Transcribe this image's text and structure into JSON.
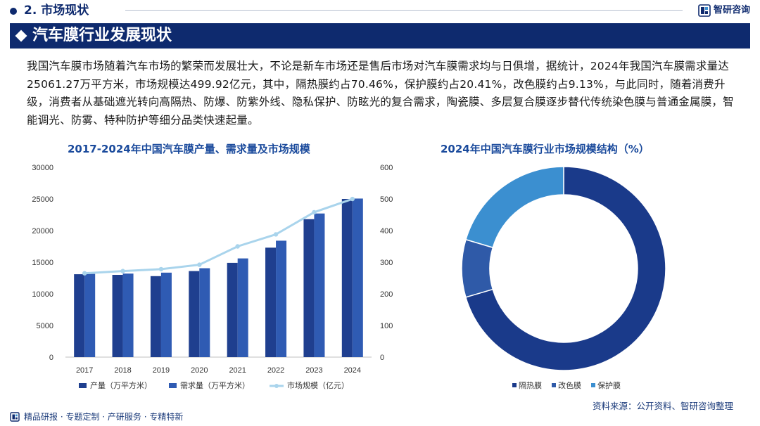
{
  "header": {
    "section": "2. 市场现状",
    "brand": "智研咨询"
  },
  "banner": {
    "title": "汽车膜行业发展现状"
  },
  "intro": "我国汽车膜市场随着汽车市场的繁荣而发展壮大，不论是新车市场还是售后市场对汽车膜需求均与日俱增，据统计，2024年我国汽车膜需求量达25061.27万平方米，市场规模达499.92亿元，其中，隔热膜约占70.46%，保护膜约占20.41%，改色膜约占9.13%，与此同时，随着消费升级，消费者从基础遮光转向高隔热、防爆、防紫外线、隐私保护、防眩光的复合需求，陶瓷膜、多层复合膜逐步替代传统染色膜与普通金属膜，智能调光、防雾、特种防护等细分品类快速起量。",
  "colors": {
    "navy": "#0e2a6e",
    "production": "#1f3f8f",
    "demand": "#2f5bb3",
    "market": "#a9d4ec",
    "pie_heat": "#1a3a8a",
    "pie_color": "#2f5aa8",
    "pie_protect": "#3b8fd0"
  },
  "chart_data": [
    {
      "type": "bar",
      "title": "2017-2024年中国汽车膜产量、需求量及市场规模",
      "categories": [
        "2017",
        "2018",
        "2019",
        "2020",
        "2021",
        "2022",
        "2023",
        "2024"
      ],
      "series": [
        {
          "name": "产量（万平方米）",
          "kind": "bar",
          "axis": "left",
          "values": [
            13100,
            13000,
            12800,
            13600,
            14900,
            17300,
            21800,
            25000
          ]
        },
        {
          "name": "需求量（万平方米）",
          "kind": "bar",
          "axis": "left",
          "values": [
            13150,
            13200,
            13350,
            14050,
            15600,
            18400,
            22700,
            25061.27
          ]
        },
        {
          "name": "市场规模（亿元）",
          "kind": "line",
          "axis": "right",
          "values": [
            265,
            272,
            278,
            292,
            350,
            388,
            458,
            499.92
          ]
        }
      ],
      "y_left": {
        "min": 0,
        "max": 30000,
        "ticks": [
          "0",
          "5000",
          "10000",
          "15000",
          "20000",
          "25000",
          "30000"
        ]
      },
      "y_right": {
        "min": 0,
        "max": 600,
        "ticks": [
          "0",
          "100",
          "200",
          "300",
          "400",
          "500",
          "600"
        ]
      },
      "grid": false,
      "legend": "bottom"
    },
    {
      "type": "pie",
      "title": "2024年中国汽车膜行业市场规模结构（%）",
      "donut": true,
      "slices": [
        {
          "name": "隔热膜",
          "value": 70.46
        },
        {
          "name": "改色膜",
          "value": 9.13
        },
        {
          "name": "保护膜",
          "value": 20.41
        }
      ],
      "legend": "bottom"
    }
  ],
  "footer": {
    "services": "精品研报 · 专题定制 · 产研服务 · 专精特新",
    "source": "资料来源：公开资料、智研咨询整理"
  }
}
